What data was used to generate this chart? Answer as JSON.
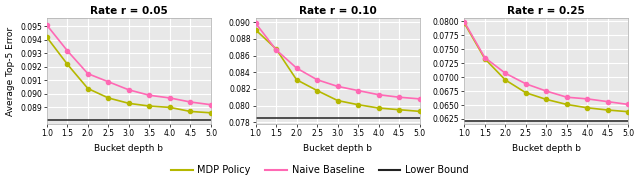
{
  "subplots": [
    {
      "title": "Rate r = 0.05",
      "ylim": [
        0.08775,
        0.09565
      ],
      "yticks": [
        0.089,
        0.09,
        0.091,
        0.092,
        0.093,
        0.094,
        0.095
      ],
      "yticklabels": [
        "0.089",
        "0.090",
        "0.091",
        "0.092",
        "0.093",
        "0.094",
        "0.095"
      ],
      "x": [
        1.0,
        1.5,
        2.0,
        2.5,
        3.0,
        3.5,
        4.0,
        4.5,
        5.0
      ],
      "mdp": [
        0.0942,
        0.0922,
        0.0904,
        0.0897,
        0.0893,
        0.0891,
        0.089,
        0.0887,
        0.0886
      ],
      "naive": [
        0.0951,
        0.0932,
        0.0915,
        0.0909,
        0.0903,
        0.0899,
        0.0897,
        0.0894,
        0.0892
      ],
      "lower_bound": 0.08805
    },
    {
      "title": "Rate r = 0.10",
      "ylim": [
        0.07775,
        0.09055
      ],
      "yticks": [
        0.078,
        0.08,
        0.082,
        0.084,
        0.086,
        0.088,
        0.09
      ],
      "yticklabels": [
        "0.078",
        "0.080",
        "0.082",
        "0.084",
        "0.086",
        "0.088",
        "0.090"
      ],
      "x": [
        1.0,
        1.5,
        2.0,
        2.5,
        3.0,
        3.5,
        4.0,
        4.5,
        5.0
      ],
      "mdp": [
        0.0891,
        0.0868,
        0.0831,
        0.0818,
        0.0806,
        0.0801,
        0.0797,
        0.0795,
        0.0793
      ],
      "naive": [
        0.0899,
        0.0867,
        0.0845,
        0.0831,
        0.0823,
        0.0818,
        0.0813,
        0.081,
        0.0808
      ],
      "lower_bound": 0.07855
    },
    {
      "title": "Rate r = 0.25",
      "ylim": [
        0.06155,
        0.08065
      ],
      "yticks": [
        0.0625,
        0.065,
        0.0675,
        0.07,
        0.0725,
        0.075,
        0.0775,
        0.08
      ],
      "yticklabels": [
        "0.0625",
        "0.0650",
        "0.0675",
        "0.0700",
        "0.0725",
        "0.0750",
        "0.0775",
        "0.0800"
      ],
      "x": [
        1.0,
        1.5,
        2.0,
        2.5,
        3.0,
        3.5,
        4.0,
        4.5,
        5.0
      ],
      "mdp": [
        0.0797,
        0.0733,
        0.0695,
        0.0672,
        0.066,
        0.0651,
        0.0645,
        0.0641,
        0.0638
      ],
      "naive": [
        0.0799,
        0.0735,
        0.0707,
        0.0688,
        0.0675,
        0.0664,
        0.0661,
        0.0656,
        0.0651
      ],
      "lower_bound": 0.06215
    }
  ],
  "xlabel": "Bucket depth b",
  "ylabel": "Average Top-5 Error",
  "mdp_color": "#b5b800",
  "naive_color": "#ff69b4",
  "lower_bound_color": "#222222",
  "legend": [
    "MDP Policy",
    "Naive Baseline",
    "Lower Bound"
  ],
  "marker": "o",
  "markersize": 3.0,
  "linewidth": 1.2,
  "xticks": [
    1.0,
    1.5,
    2.0,
    2.5,
    3.0,
    3.5,
    4.0,
    4.5,
    5.0
  ],
  "xticklabels": [
    "1.0",
    "1.5",
    "2.0",
    "2.5",
    "3.0",
    "3.5",
    "4.0",
    "4.5",
    "5.0"
  ],
  "bg_color": "#e8e8e8",
  "fig_bg": "#ffffff"
}
